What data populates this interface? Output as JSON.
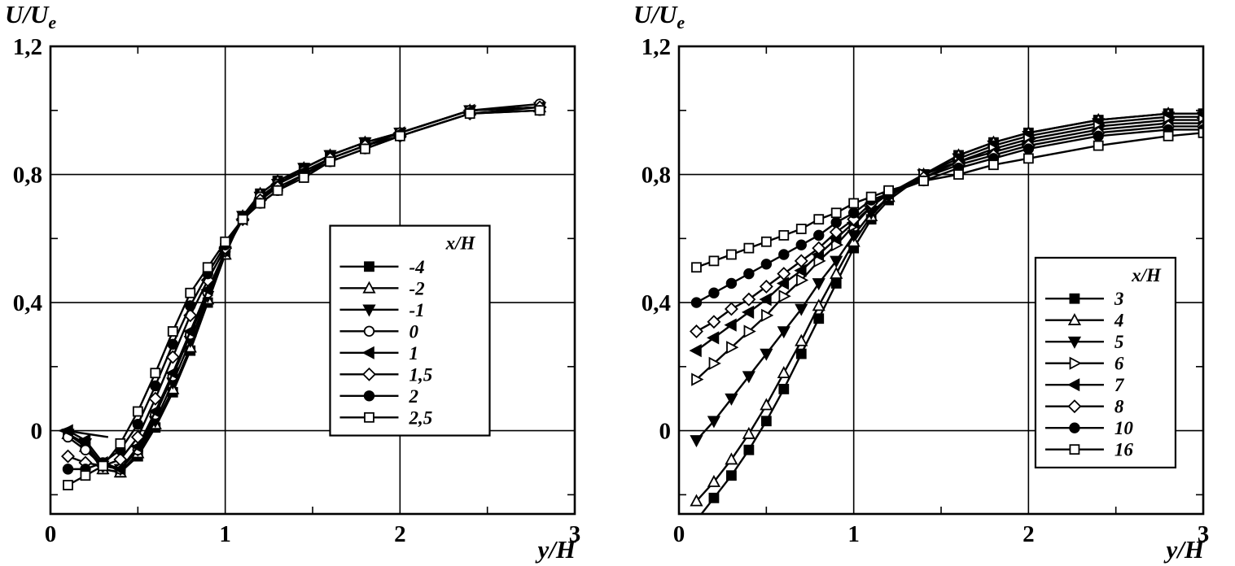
{
  "colors": {
    "line": "#000000",
    "background": "#ffffff"
  },
  "chart_data": [
    {
      "type": "line",
      "title": "",
      "ylabel_main": "U/U",
      "ylabel_sub": "e",
      "xlabel": "y/H",
      "xlim": [
        0,
        3
      ],
      "ylim": [
        -0.26,
        1.2
      ],
      "grid": true,
      "xticks": [
        {
          "v": 0,
          "label": "0"
        },
        {
          "v": 1,
          "label": "1"
        },
        {
          "v": 2,
          "label": "2"
        },
        {
          "v": 3,
          "label": "3"
        }
      ],
      "yticks": [
        {
          "v": 0,
          "label": "0"
        },
        {
          "v": 0.4,
          "label": "0,4"
        },
        {
          "v": 0.8,
          "label": "0,8"
        },
        {
          "v": 1.2,
          "label": "1,2"
        }
      ],
      "legend": {
        "title": "x/H",
        "x": 1.6,
        "y": 0.64
      },
      "annotations": [
        {
          "type": "arrow-left",
          "from": [
            0.33,
            -0.02
          ],
          "to": [
            0.04,
            0.0
          ]
        }
      ],
      "x": [
        0.1,
        0.2,
        0.3,
        0.4,
        0.5,
        0.6,
        0.7,
        0.8,
        0.9,
        1.0,
        1.1,
        1.2,
        1.3,
        1.45,
        1.6,
        1.8,
        2.0,
        2.4,
        2.8
      ],
      "series": [
        {
          "label": "-4",
          "marker": "square",
          "fill": "black",
          "y": [
            -0.01,
            -0.05,
            -0.12,
            -0.13,
            -0.08,
            0.01,
            0.12,
            0.25,
            0.4,
            0.55,
            0.67,
            0.74,
            0.78,
            0.82,
            0.86,
            0.9,
            0.93,
            1.0,
            1.01
          ]
        },
        {
          "label": "-2",
          "marker": "triangle-up",
          "fill": "white",
          "y": [
            -0.01,
            -0.05,
            -0.12,
            -0.13,
            -0.07,
            0.02,
            0.13,
            0.26,
            0.41,
            0.55,
            0.67,
            0.74,
            0.78,
            0.82,
            0.86,
            0.9,
            0.93,
            1.0,
            1.01
          ]
        },
        {
          "label": "-1",
          "marker": "triangle-down",
          "fill": "black",
          "y": [
            -0.01,
            -0.04,
            -0.11,
            -0.12,
            -0.06,
            0.03,
            0.15,
            0.28,
            0.42,
            0.56,
            0.67,
            0.73,
            0.77,
            0.82,
            0.86,
            0.9,
            0.93,
            1.0,
            1.01
          ]
        },
        {
          "label": "0",
          "marker": "circle",
          "fill": "white",
          "y": [
            -0.02,
            -0.06,
            -0.11,
            -0.12,
            -0.06,
            0.05,
            0.17,
            0.3,
            0.43,
            0.56,
            0.66,
            0.73,
            0.77,
            0.81,
            0.85,
            0.89,
            0.93,
            1.0,
            1.02
          ]
        },
        {
          "label": "1",
          "marker": "triangle-left",
          "fill": "black",
          "y": [
            0.0,
            -0.03,
            -0.1,
            -0.12,
            -0.05,
            0.06,
            0.18,
            0.31,
            0.44,
            0.56,
            0.66,
            0.72,
            0.77,
            0.81,
            0.85,
            0.89,
            0.93,
            1.0,
            1.01
          ]
        },
        {
          "label": "1,5",
          "marker": "diamond",
          "fill": "white",
          "y": [
            -0.08,
            -0.1,
            -0.11,
            -0.09,
            -0.02,
            0.1,
            0.23,
            0.36,
            0.47,
            0.57,
            0.66,
            0.72,
            0.76,
            0.8,
            0.85,
            0.89,
            0.92,
            0.99,
            1.01
          ]
        },
        {
          "label": "2",
          "marker": "circle",
          "fill": "black",
          "y": [
            -0.12,
            -0.12,
            -0.1,
            -0.06,
            0.02,
            0.14,
            0.27,
            0.39,
            0.49,
            0.58,
            0.66,
            0.71,
            0.75,
            0.8,
            0.84,
            0.88,
            0.92,
            0.99,
            1.0
          ]
        },
        {
          "label": "2,5",
          "marker": "square",
          "fill": "white",
          "y": [
            -0.17,
            -0.14,
            -0.11,
            -0.04,
            0.06,
            0.18,
            0.31,
            0.43,
            0.51,
            0.59,
            0.66,
            0.71,
            0.75,
            0.79,
            0.84,
            0.88,
            0.92,
            0.99,
            1.0
          ]
        }
      ]
    },
    {
      "type": "line",
      "title": "",
      "ylabel_main": "U/U",
      "ylabel_sub": "e",
      "xlabel": "y/H",
      "xlim": [
        0,
        3
      ],
      "ylim": [
        -0.26,
        1.2
      ],
      "grid": true,
      "xticks": [
        {
          "v": 0,
          "label": "0"
        },
        {
          "v": 1,
          "label": "1"
        },
        {
          "v": 2,
          "label": "2"
        },
        {
          "v": 3,
          "label": "3"
        }
      ],
      "yticks": [
        {
          "v": 0,
          "label": "0"
        },
        {
          "v": 0.4,
          "label": "0,4"
        },
        {
          "v": 0.8,
          "label": "0,8"
        },
        {
          "v": 1.2,
          "label": "1,2"
        }
      ],
      "legend": {
        "title": "x/H",
        "x": 2.04,
        "y": 0.54
      },
      "annotations": [],
      "x": [
        0.1,
        0.2,
        0.3,
        0.4,
        0.5,
        0.6,
        0.7,
        0.8,
        0.9,
        1.0,
        1.1,
        1.2,
        1.4,
        1.6,
        1.8,
        2.0,
        2.4,
        2.8,
        3.0
      ],
      "series": [
        {
          "label": "3",
          "marker": "square",
          "fill": "black",
          "y": [
            -0.28,
            -0.21,
            -0.14,
            -0.06,
            0.03,
            0.13,
            0.24,
            0.35,
            0.46,
            0.57,
            0.66,
            0.72,
            0.8,
            0.86,
            0.9,
            0.93,
            0.97,
            0.99,
            0.99
          ]
        },
        {
          "label": "4",
          "marker": "triangle-up",
          "fill": "white",
          "y": [
            -0.22,
            -0.16,
            -0.09,
            -0.01,
            0.08,
            0.18,
            0.28,
            0.39,
            0.49,
            0.59,
            0.67,
            0.73,
            0.8,
            0.86,
            0.9,
            0.93,
            0.97,
            0.99,
            0.99
          ]
        },
        {
          "label": "5",
          "marker": "triangle-down",
          "fill": "black",
          "y": [
            -0.03,
            0.03,
            0.1,
            0.17,
            0.24,
            0.31,
            0.38,
            0.46,
            0.53,
            0.61,
            0.68,
            0.73,
            0.8,
            0.85,
            0.89,
            0.92,
            0.96,
            0.98,
            0.98
          ]
        },
        {
          "label": "6",
          "marker": "triangle-right",
          "fill": "white",
          "y": [
            0.16,
            0.21,
            0.26,
            0.31,
            0.36,
            0.42,
            0.47,
            0.53,
            0.58,
            0.64,
            0.7,
            0.74,
            0.8,
            0.84,
            0.88,
            0.91,
            0.95,
            0.97,
            0.97
          ]
        },
        {
          "label": "7",
          "marker": "triangle-left",
          "fill": "black",
          "y": [
            0.25,
            0.29,
            0.33,
            0.37,
            0.41,
            0.46,
            0.5,
            0.55,
            0.6,
            0.65,
            0.7,
            0.74,
            0.79,
            0.84,
            0.87,
            0.9,
            0.94,
            0.96,
            0.96
          ]
        },
        {
          "label": "8",
          "marker": "diamond",
          "fill": "white",
          "y": [
            0.31,
            0.34,
            0.38,
            0.41,
            0.45,
            0.49,
            0.53,
            0.57,
            0.62,
            0.66,
            0.71,
            0.74,
            0.79,
            0.83,
            0.86,
            0.89,
            0.93,
            0.95,
            0.95
          ]
        },
        {
          "label": "10",
          "marker": "circle",
          "fill": "black",
          "y": [
            0.4,
            0.43,
            0.46,
            0.49,
            0.52,
            0.55,
            0.58,
            0.61,
            0.65,
            0.68,
            0.72,
            0.74,
            0.78,
            0.82,
            0.85,
            0.88,
            0.92,
            0.94,
            0.94
          ]
        },
        {
          "label": "16",
          "marker": "square",
          "fill": "white",
          "y": [
            0.51,
            0.53,
            0.55,
            0.57,
            0.59,
            0.61,
            0.63,
            0.66,
            0.68,
            0.71,
            0.73,
            0.75,
            0.78,
            0.8,
            0.83,
            0.85,
            0.89,
            0.92,
            0.93
          ]
        }
      ]
    }
  ]
}
